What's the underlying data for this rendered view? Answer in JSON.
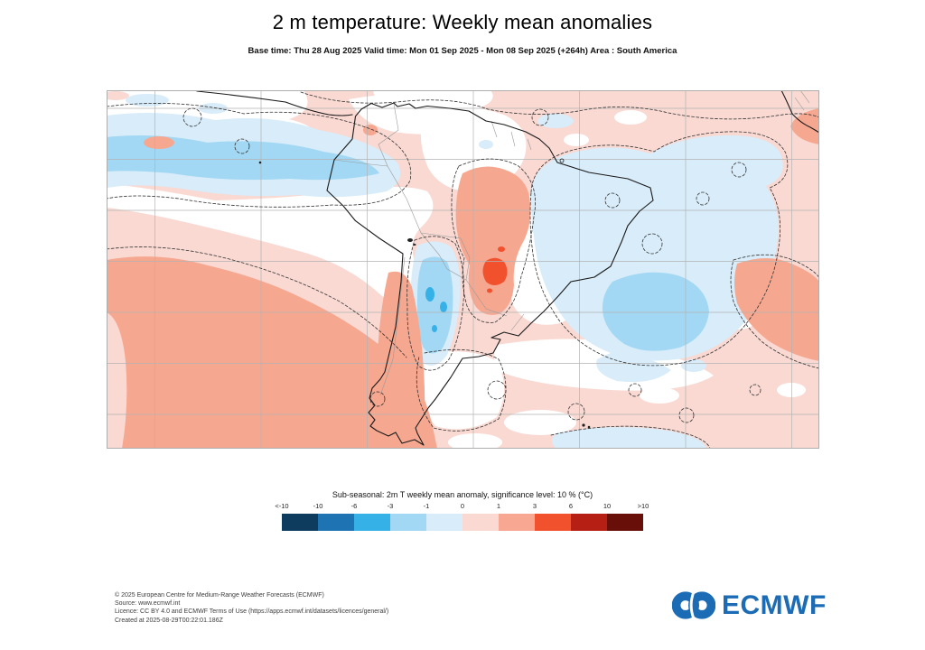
{
  "header": {
    "title": "2 m temperature: Weekly mean anomalies",
    "subtitle": "Base time: Thu 28 Aug 2025 Valid time: Mon 01 Sep 2025 - Mon 08 Sep 2025 (+264h) Area : South America"
  },
  "legend": {
    "title": "Sub-seasonal: 2m T weekly mean anomaly, significance level: 10 % (°C)",
    "tick_labels": [
      "<-10",
      "-10",
      "-6",
      "-3",
      "-1",
      "0",
      "1",
      "3",
      "6",
      "10",
      ">10"
    ],
    "colors": [
      "#0d3c5f",
      "#1e74b2",
      "#35b1e8",
      "#a2d8f3",
      "#d8ecf9",
      "#fbd9d3",
      "#f8a892",
      "#f2512e",
      "#b51f14",
      "#690f0a"
    ]
  },
  "footer": {
    "lines": [
      "© 2025 European Centre for Medium-Range Weather Forecasts (ECMWF)",
      "Source: www.ecmwf.int",
      "Licence: CC BY 4.0 and ECMWF Terms of Use (https://apps.ecmwf.int/datasets/licences/general/)",
      "Created at 2025-08-29T00:22:01.186Z"
    ]
  },
  "logo": {
    "text": "ECMWF",
    "color": "#1c6bb5"
  },
  "chart_data": {
    "type": "heatmap",
    "title": "2 m temperature: Weekly mean anomalies",
    "variable": "2 m temperature weekly mean anomaly",
    "units": "°C",
    "significance_level": "10 %",
    "area": "South America",
    "base_time": "Thu 28 Aug 2025",
    "valid_time": "Mon 01 Sep 2025 - Mon 08 Sep 2025 (+264h)",
    "scale_boundaries": [
      -10,
      -6,
      -3,
      -1,
      0,
      1,
      3,
      6,
      10
    ],
    "scale_labels": [
      "<-10",
      "-10",
      "-6",
      "-3",
      "-1",
      "0",
      "1",
      "3",
      "6",
      "10",
      ">10"
    ],
    "scale_colors": [
      "#0d3c5f",
      "#1e74b2",
      "#35b1e8",
      "#a2d8f3",
      "#d8ecf9",
      "#fbd9d3",
      "#f8a892",
      "#f2512e",
      "#b51f14",
      "#690f0a"
    ],
    "grid": true,
    "legend_position": "bottom",
    "features": [
      {
        "region": "eastern tropical Pacific",
        "anomaly_c": "-1 to -3"
      },
      {
        "region": "northern Argentina / Paraguay",
        "anomaly_c": "-1 to -6"
      },
      {
        "region": "southwest Atlantic offshore Brazil",
        "anomaly_c": "-1 to -3"
      },
      {
        "region": "southeast Brazil",
        "anomaly_c": "+3 to +6"
      },
      {
        "region": "central-eastern Brazil",
        "anomaly_c": "+1 to +3"
      },
      {
        "region": "Patagonia / southern Chile",
        "anomaly_c": "+1 to +3"
      },
      {
        "region": "south Pacific and most remaining ocean",
        "anomaly_c": "0 to +3"
      },
      {
        "region": "non-significant areas",
        "anomaly_c": "masked white, dashed 10% significance contours"
      }
    ]
  }
}
